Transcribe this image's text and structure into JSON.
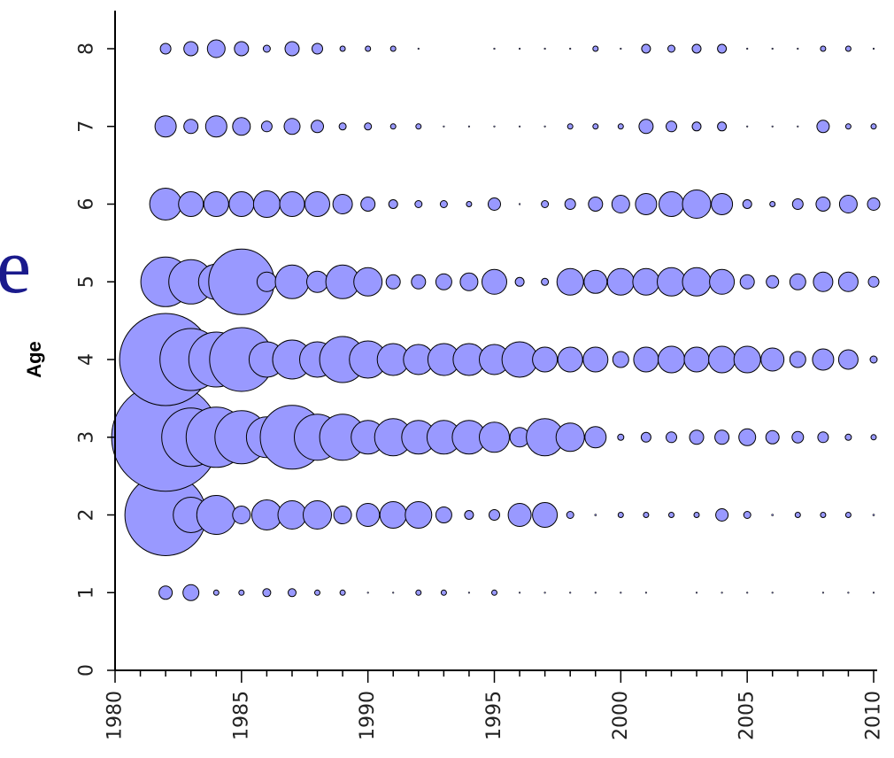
{
  "background_text": "e",
  "chart_data": {
    "type": "scatter",
    "subtype": "bubble",
    "title": "",
    "xlabel": "",
    "ylabel": "Age",
    "xlim": [
      1980,
      2010
    ],
    "ylim": [
      0,
      8
    ],
    "xticks_major": [
      1980,
      1985,
      1990,
      1995,
      2000,
      2005,
      2010
    ],
    "xticks_minor": [
      1981,
      1982,
      1983,
      1984,
      1986,
      1987,
      1988,
      1989,
      1991,
      1992,
      1993,
      1994,
      1996,
      1997,
      1998,
      1999,
      2001,
      2002,
      2003,
      2004,
      2006,
      2007,
      2008,
      2009
    ],
    "yticks": [
      0,
      1,
      2,
      3,
      4,
      5,
      6,
      7,
      8
    ],
    "grid": false,
    "legend": "none",
    "fill_color": "#9999ff",
    "edge_color": "#000000",
    "years": [
      1982,
      1983,
      1984,
      1985,
      1986,
      1987,
      1988,
      1989,
      1990,
      1991,
      1992,
      1993,
      1994,
      1995,
      1996,
      1997,
      1998,
      1999,
      2000,
      2001,
      2002,
      2003,
      2004,
      2005,
      2006,
      2007,
      2008,
      2009,
      2010
    ],
    "series": [
      {
        "age": 1,
        "sizes": [
          7.5,
          9,
          3,
          3,
          4.5,
          4.5,
          3,
          3,
          0.8,
          0.8,
          3,
          3,
          0.8,
          3,
          0.8,
          0.8,
          0.8,
          0.8,
          0.8,
          0.8,
          0,
          0.8,
          0.8,
          0.8,
          0.8,
          0,
          0.8,
          0.8,
          0.8
        ]
      },
      {
        "age": 2,
        "sizes": [
          46,
          20,
          22,
          10,
          17,
          16,
          16,
          10,
          13,
          15,
          15,
          9,
          5,
          6,
          13,
          14,
          4,
          1,
          3,
          3,
          3,
          3,
          7,
          4,
          1,
          3,
          3,
          3,
          1
        ]
      },
      {
        "age": 3,
        "sizes": [
          61,
          33,
          34,
          30,
          23,
          36,
          26,
          26,
          19,
          21,
          19,
          19,
          19,
          17,
          11,
          21,
          16,
          12,
          3.5,
          5.5,
          6,
          8,
          8,
          9.5,
          7.5,
          6.5,
          6,
          3.5,
          3
        ]
      },
      {
        "age": 4,
        "sizes": [
          52,
          35,
          31,
          36,
          20,
          22,
          20,
          26,
          21,
          18,
          17,
          18,
          18,
          17,
          20,
          14,
          14,
          14,
          9,
          14,
          15,
          14,
          15,
          15,
          13,
          9,
          12,
          11,
          4
        ]
      },
      {
        "age": 5,
        "sizes": [
          28,
          25,
          20,
          37,
          11,
          19,
          12,
          19,
          16,
          8,
          8,
          9,
          10,
          14,
          5,
          4,
          15,
          13,
          15,
          15,
          16,
          16,
          14,
          8,
          7,
          9,
          11,
          11,
          6
        ]
      },
      {
        "age": 6,
        "sizes": [
          18,
          14,
          14,
          14,
          15,
          14,
          14,
          11,
          8,
          5,
          4,
          4,
          3,
          7,
          0.8,
          4,
          6,
          8,
          10,
          12,
          14,
          16,
          12,
          5,
          3,
          6,
          8,
          10,
          7
        ]
      },
      {
        "age": 7,
        "sizes": [
          12,
          8,
          12,
          10,
          6,
          9,
          7,
          4,
          4,
          3,
          3,
          0.8,
          0.8,
          0.8,
          0.8,
          0.8,
          3,
          3,
          3,
          8,
          6,
          5,
          5,
          0.8,
          0.8,
          0.8,
          7,
          3,
          3
        ]
      },
      {
        "age": 8,
        "sizes": [
          6,
          8,
          10,
          8,
          4,
          8,
          6,
          3,
          3,
          3,
          0.8,
          0,
          0,
          0.8,
          0.8,
          0.8,
          0.8,
          3,
          0.8,
          5,
          4,
          5,
          5,
          0.8,
          0.8,
          0.8,
          3,
          3,
          0.8
        ]
      }
    ]
  }
}
